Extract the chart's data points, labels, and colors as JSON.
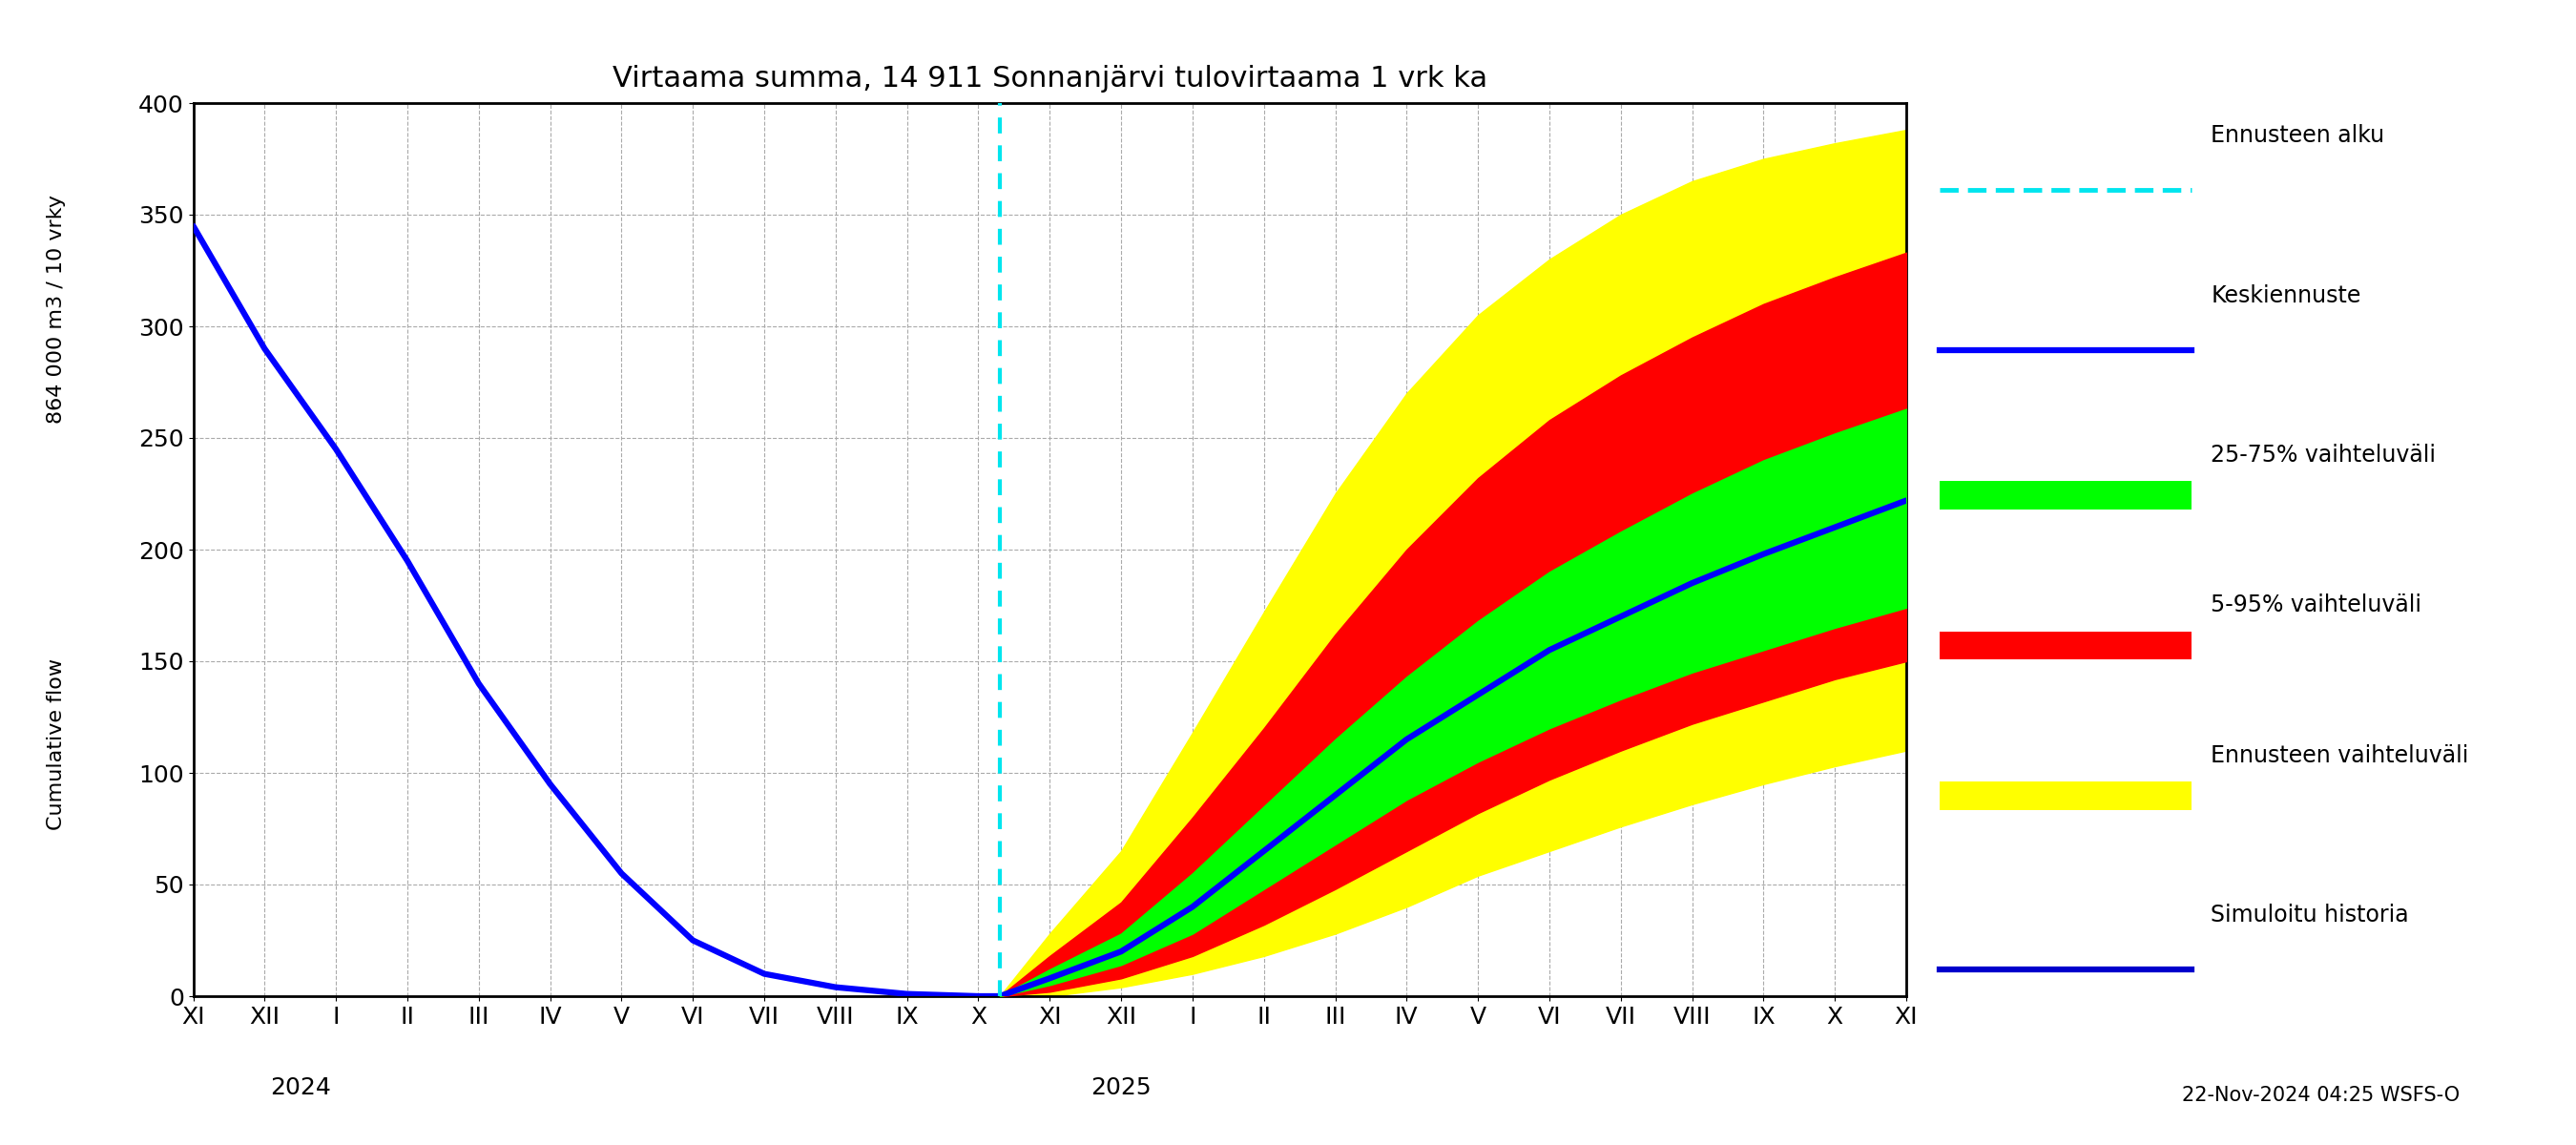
{
  "title": "Virtaama summa, 14 911 Sonnanjärvi tulovirtaama 1 vrk ka",
  "ylabel_top": "864 000 m3 / 10 vrky",
  "ylabel_bottom": "Cumulative flow",
  "footnote": "22-Nov-2024 04:25 WSFS-O",
  "xlim_start": 0,
  "xlim_end": 24,
  "ylim": [
    0,
    400
  ],
  "yticks": [
    0,
    50,
    100,
    150,
    200,
    250,
    300,
    350,
    400
  ],
  "x_tick_labels": [
    "XI",
    "XII",
    "I",
    "II",
    "III",
    "IV",
    "V",
    "VI",
    "VII",
    "VIII",
    "IX",
    "X",
    "XI",
    "XII",
    "I",
    "II",
    "III",
    "IV",
    "V",
    "VI",
    "VII",
    "VIII",
    "IX",
    "X",
    "XI"
  ],
  "x_tick_positions": [
    0,
    1,
    2,
    3,
    4,
    5,
    6,
    7,
    8,
    9,
    10,
    11,
    12,
    13,
    14,
    15,
    16,
    17,
    18,
    19,
    20,
    21,
    22,
    23,
    24
  ],
  "forecast_start_x": 11.3,
  "historical_x": [
    0,
    1,
    2,
    3,
    4,
    5,
    6,
    7,
    8,
    9,
    10,
    11,
    11.3
  ],
  "historical_y": [
    345,
    290,
    245,
    195,
    140,
    95,
    55,
    25,
    10,
    4,
    1,
    0,
    0
  ],
  "median_x": [
    11.3,
    12,
    13,
    14,
    15,
    16,
    17,
    18,
    19,
    20,
    21,
    22,
    23,
    24
  ],
  "median_y": [
    0,
    8,
    20,
    40,
    65,
    90,
    115,
    135,
    155,
    170,
    185,
    198,
    210,
    222
  ],
  "q25_y": [
    0,
    5,
    14,
    28,
    48,
    68,
    88,
    105,
    120,
    133,
    145,
    155,
    165,
    174
  ],
  "q75_y": [
    0,
    12,
    28,
    55,
    85,
    115,
    143,
    168,
    190,
    208,
    225,
    240,
    252,
    263
  ],
  "q05_y": [
    0,
    2,
    8,
    18,
    32,
    48,
    65,
    82,
    97,
    110,
    122,
    132,
    142,
    150
  ],
  "q95_y": [
    0,
    18,
    42,
    80,
    120,
    162,
    200,
    232,
    258,
    278,
    295,
    310,
    322,
    333
  ],
  "env_min_y": [
    0,
    0,
    4,
    10,
    18,
    28,
    40,
    54,
    65,
    76,
    86,
    95,
    103,
    110
  ],
  "env_max_y": [
    0,
    28,
    65,
    118,
    172,
    225,
    270,
    305,
    330,
    350,
    365,
    375,
    382,
    388
  ],
  "color_historical": "#0000ff",
  "color_median": "#0000ff",
  "color_green_fill": "#00ff00",
  "color_red_fill": "#ff0000",
  "color_yellow_fill": "#ffff00",
  "color_cyan_dashed": "#00e5ee",
  "color_forecast_vline": "#00e5ee",
  "grid_color": "#aaaaaa",
  "background_color": "#ffffff"
}
